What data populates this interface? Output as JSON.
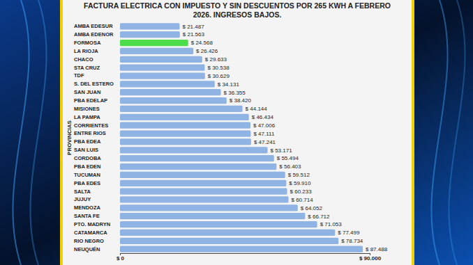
{
  "chart_data": {
    "type": "bar",
    "orientation": "horizontal",
    "title": "FACTURA ELECTRICA CON IMPUESTO Y SIN DESCUENTOS POR 265 KWH A FEBRERO 2026. INGRESOS BAJOS.",
    "ylabel": "PROVINCIAS",
    "categories": [
      "AMBA EDESUR",
      "AMBA EDENOR",
      "FORMOSA",
      "LA RIOJA",
      "CHACO",
      "STA CRUZ",
      "TDF",
      "S. DEL ESTERO",
      "SAN JUAN",
      "PBA EDELAP",
      "MISIONES",
      "LA PAMPA",
      "CORRIENTES",
      "ENTRE RIOS",
      "PBA EDEA",
      "SAN LUIS",
      "CORDOBA",
      "PBA EDEN",
      "TUCUMAN",
      "PBA EDES",
      "SALTA",
      "JUJUY",
      "MENDOZA",
      "SANTA FE",
      "PTO. MADRYN",
      "CATAMARCA",
      "RIO NEGRO",
      "NEUQUÉN"
    ],
    "values": [
      21487,
      21563,
      24568,
      26426,
      29633,
      30538,
      30629,
      34131,
      36355,
      38420,
      44144,
      46434,
      47006,
      47111,
      47241,
      53171,
      55494,
      56403,
      59512,
      59910,
      60233,
      60714,
      64052,
      66712,
      71053,
      77499,
      78734,
      87488
    ],
    "value_labels": [
      "$ 21.487",
      "$ 21.563",
      "$ 24.568",
      "$ 26.426",
      "$ 29.633",
      "$ 30.538",
      "$ 30.629",
      "$ 34.131",
      "$ 36.355",
      "$ 38.420",
      "$ 44.144",
      "$ 46.434",
      "$ 47.006",
      "$ 47.111",
      "$ 47.241",
      "$ 53.171",
      "$ 55.494",
      "$ 56.403",
      "$ 59.512",
      "$ 59.910",
      "$ 60.233",
      "$ 60.714",
      "$ 64.052",
      "$ 66.712",
      "$ 71.053",
      "$ 77.499",
      "$ 78.734",
      "$ 87.488"
    ],
    "colors": [
      "#8fb4e3",
      "#8fb4e3",
      "#4cdc4c",
      "#8fb4e3",
      "#8fb4e3",
      "#8fb4e3",
      "#8fb4e3",
      "#8fb4e3",
      "#8fb4e3",
      "#8fb4e3",
      "#8fb4e3",
      "#8fb4e3",
      "#8fb4e3",
      "#8fb4e3",
      "#8fb4e3",
      "#8fb4e3",
      "#8fb4e3",
      "#8fb4e3",
      "#8fb4e3",
      "#8fb4e3",
      "#8fb4e3",
      "#8fb4e3",
      "#8fb4e3",
      "#8fb4e3",
      "#8fb4e3",
      "#8fb4e3",
      "#8fb4e3",
      "#8fb4e3"
    ],
    "xlim": [
      0,
      90000
    ],
    "xticks": [
      {
        "value": 0,
        "label": "$ 0"
      },
      {
        "value": 90000,
        "label": "$ 90.000"
      }
    ],
    "data_labels": true,
    "grid": false
  }
}
